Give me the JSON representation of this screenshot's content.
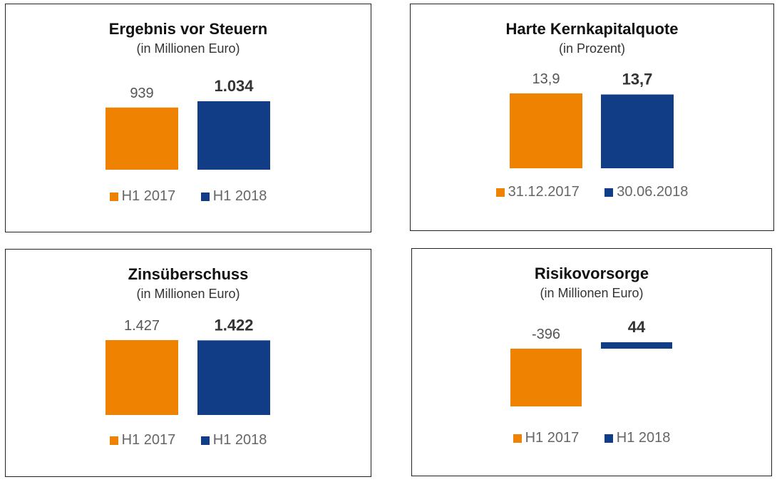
{
  "colors": {
    "series_a": "#ef8200",
    "series_b": "#103d86"
  },
  "chart_data": [
    {
      "type": "bar",
      "title": "Ergebnis vor Steuern",
      "subtitle": "(in Millionen Euro)",
      "categories": [
        "H1 2017",
        "H1 2018"
      ],
      "values": [
        939,
        1034
      ],
      "value_labels": [
        "939",
        "1.034"
      ],
      "legend": [
        "H1 2017",
        "H1 2018"
      ],
      "ylim": [
        0,
        1034
      ],
      "grid": false,
      "legend_position": "bottom"
    },
    {
      "type": "bar",
      "title": "Harte Kernkapitalquote",
      "subtitle": "(in Prozent)",
      "categories": [
        "31.12.2017",
        "30.06.2018"
      ],
      "values": [
        13.9,
        13.7
      ],
      "value_labels": [
        "13,9",
        "13,7"
      ],
      "legend": [
        "31.12.2017",
        "30.06.2018"
      ],
      "ylim": [
        0,
        13.9
      ],
      "grid": false,
      "legend_position": "bottom"
    },
    {
      "type": "bar",
      "title": "Zinsüberschuss",
      "subtitle": "(in Millionen Euro)",
      "categories": [
        "H1 2017",
        "H1 2018"
      ],
      "values": [
        1427,
        1422
      ],
      "value_labels": [
        "1.427",
        "1.422"
      ],
      "legend": [
        "H1 2017",
        "H1 2018"
      ],
      "ylim": [
        0,
        1427
      ],
      "grid": false,
      "legend_position": "bottom"
    },
    {
      "type": "bar",
      "title": "Risikovorsorge",
      "subtitle": "(in Millionen Euro)",
      "categories": [
        "H1 2017",
        "H1 2018"
      ],
      "values": [
        -396,
        44
      ],
      "value_labels": [
        "-396",
        "44"
      ],
      "legend": [
        "H1 2017",
        "H1 2018"
      ],
      "ylim": [
        -396,
        44
      ],
      "grid": false,
      "legend_position": "bottom"
    }
  ]
}
